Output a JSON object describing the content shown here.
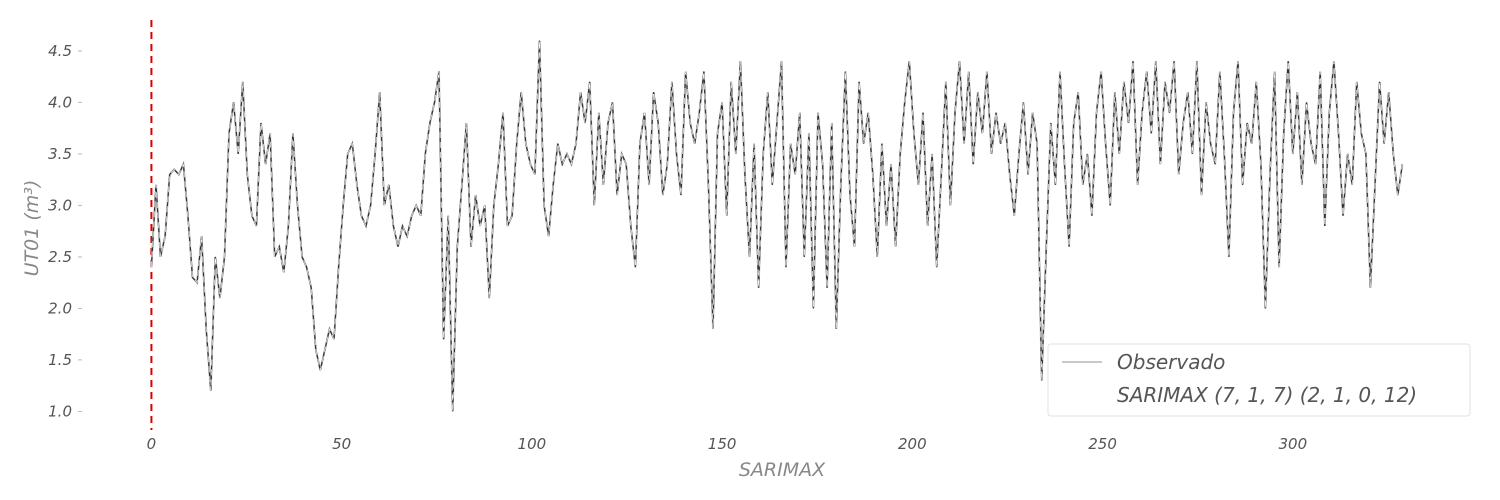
{
  "chart_data": {
    "type": "line",
    "title": "",
    "xlabel": "SARIMAX",
    "ylabel": "UT01 (m³)",
    "xlim": [
      -3,
      340
    ],
    "ylim": [
      0.8,
      4.8
    ],
    "xticks": [
      0,
      50,
      100,
      150,
      200,
      250,
      300
    ],
    "yticks": [
      1.0,
      1.5,
      2.0,
      2.5,
      3.0,
      3.5,
      4.0,
      4.5
    ],
    "grid": false,
    "legend": "bottom-right",
    "vline": {
      "x": 0,
      "color": "#dd0000",
      "style": "dashed"
    },
    "series": [
      {
        "name": "Observado",
        "color": "#c8c8c8",
        "style": "solid",
        "x_start": 0,
        "values": [
          2.4,
          3.2,
          2.5,
          2.7,
          3.3,
          3.35,
          3.3,
          3.4,
          2.9,
          2.3,
          2.25,
          2.7,
          1.8,
          1.2,
          2.5,
          2.1,
          2.5,
          3.7,
          4.0,
          3.5,
          4.2,
          3.3,
          2.9,
          2.8,
          3.8,
          3.4,
          3.7,
          2.5,
          2.6,
          2.35,
          2.8,
          3.7,
          3.0,
          2.5,
          2.4,
          2.2,
          1.6,
          1.4,
          1.6,
          1.8,
          1.7,
          2.4,
          3.0,
          3.5,
          3.6,
          3.2,
          2.9,
          2.8,
          3.0,
          3.5,
          4.1,
          3.0,
          3.2,
          2.8,
          2.6,
          2.8,
          2.7,
          2.9,
          3.0,
          2.9,
          3.5,
          3.8,
          4.0,
          4.3,
          1.7,
          2.9,
          1.0,
          2.6,
          3.2,
          3.8,
          2.6,
          3.1,
          2.8,
          3.0,
          2.1,
          3.0,
          3.4,
          3.9,
          2.8,
          2.9,
          3.6,
          4.1,
          3.6,
          3.4,
          3.3,
          4.6,
          3.0,
          2.7,
          3.2,
          3.6,
          3.4,
          3.5,
          3.4,
          3.6,
          4.1,
          3.8,
          4.2,
          3.0,
          3.9,
          3.2,
          3.8,
          4.0,
          3.1,
          3.5,
          3.4,
          2.8,
          2.4,
          3.6,
          3.9,
          3.2,
          4.1,
          3.8,
          3.1,
          3.4,
          4.2,
          3.5,
          3.1,
          4.3,
          3.8,
          3.6,
          3.9,
          4.3,
          3.2,
          1.8,
          3.7,
          4.0,
          2.9,
          4.2,
          3.5,
          4.4,
          3.3,
          2.5,
          3.6,
          2.2,
          3.5,
          4.1,
          3.2,
          3.8,
          4.4,
          2.4,
          3.6,
          3.3,
          3.9,
          2.5,
          3.7,
          2.0,
          3.9,
          3.4,
          2.2,
          3.8,
          1.8,
          3.2,
          4.3,
          3.1,
          2.6,
          4.2,
          3.6,
          3.9,
          3.3,
          2.5,
          3.6,
          2.8,
          3.4,
          2.6,
          3.5,
          4.0,
          4.4,
          3.7,
          3.2,
          3.9,
          2.8,
          3.5,
          2.4,
          3.3,
          4.2,
          3.0,
          3.9,
          4.4,
          3.6,
          4.3,
          3.4,
          4.1,
          3.7,
          4.3,
          3.5,
          3.9,
          3.6,
          3.8,
          3.3,
          2.9,
          3.5,
          4.0,
          3.3,
          3.9,
          3.6,
          1.3,
          2.6,
          3.8,
          3.2,
          4.3,
          3.4,
          2.6,
          3.8,
          4.1,
          3.2,
          3.5,
          2.9,
          3.9,
          4.3,
          3.6,
          3.0,
          4.1,
          3.5,
          4.2,
          3.8,
          4.4,
          3.2,
          3.9,
          4.3,
          3.7,
          4.4,
          3.4,
          4.2,
          3.9,
          4.4,
          3.3,
          3.8,
          4.1,
          3.5,
          4.4,
          3.1,
          4.0,
          3.6,
          3.4,
          4.3,
          3.5,
          2.5,
          3.9,
          4.4,
          3.2,
          3.8,
          3.6,
          4.2,
          3.4,
          2.0,
          3.3,
          4.3,
          2.4,
          3.7,
          4.4,
          3.5,
          4.1,
          3.2,
          4.0,
          3.6,
          3.4,
          4.3,
          2.8,
          3.9,
          4.4,
          3.7,
          2.9,
          3.5,
          3.2,
          4.2,
          3.7,
          3.5,
          2.2,
          3.2,
          4.2,
          3.6,
          4.1,
          3.5,
          3.1,
          3.4
        ],
        "draw_stride": 0.6
      },
      {
        "name": "SARIMAX (7, 1, 7) (2, 1, 0, 12)",
        "color": "#333333",
        "style": "dashed",
        "x_start": 0,
        "draw_stride": 0.6
      }
    ]
  }
}
